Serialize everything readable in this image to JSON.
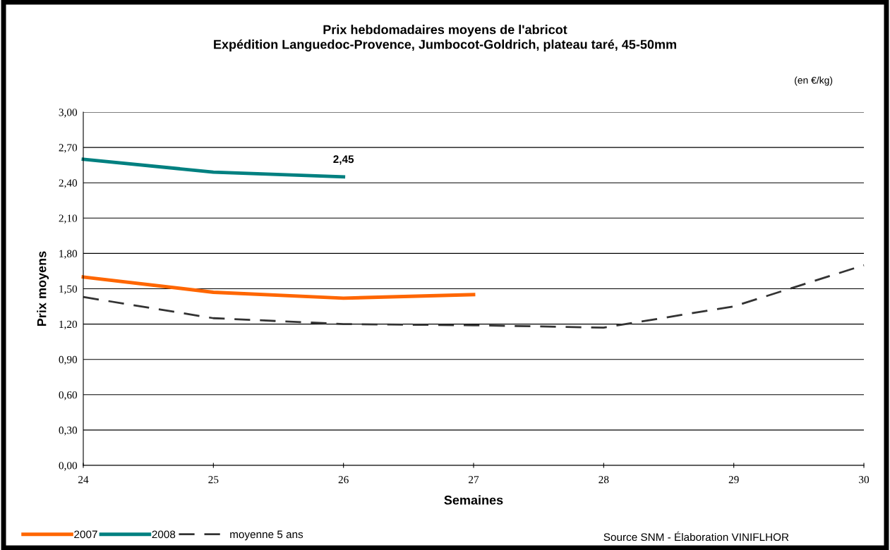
{
  "chart_data": {
    "type": "line",
    "title": "Prix hebdomadaires moyens de l'abricot\nExpédition Languedoc-Provence, Jumbocot-Goldrich, plateau taré, 45-50mm",
    "xlabel": "Semaines",
    "ylabel": "Prix moyens",
    "annotations": [
      "(en €/kg)",
      "Source SNM - Élaboration VINIFLHOR"
    ],
    "xlim": [
      24,
      30
    ],
    "xticks": [
      24,
      25,
      26,
      27,
      28,
      29,
      30
    ],
    "ylim": [
      0,
      3
    ],
    "yticks": [
      {
        "value": 0,
        "label": "0,00"
      },
      {
        "value": 0.3,
        "label": "0,30"
      },
      {
        "value": 0.6,
        "label": "0,60"
      },
      {
        "value": 0.9,
        "label": "0,90"
      },
      {
        "value": 1.2,
        "label": "1,20"
      },
      {
        "value": 1.5,
        "label": "1,50"
      },
      {
        "value": 1.8,
        "label": "1,80"
      },
      {
        "value": 2.1,
        "label": "2,10"
      },
      {
        "value": 2.4,
        "label": "2,40"
      },
      {
        "value": 2.7,
        "label": "2,70"
      },
      {
        "value": 3,
        "label": "3,00"
      }
    ],
    "grid": "y",
    "legend": "bottom left",
    "marker": "none",
    "series": [
      {
        "name": "2007",
        "color": "#ff6600",
        "line_style": "solid",
        "x": [
          24,
          25,
          26,
          27
        ],
        "values": [
          1.6,
          1.47,
          1.42,
          1.45
        ]
      },
      {
        "name": "2008",
        "color": "#008080",
        "line_style": "solid",
        "x": [
          24,
          25,
          26
        ],
        "values": [
          2.6,
          2.49,
          2.45
        ],
        "value_labels": [
          null,
          null,
          "2,45"
        ]
      },
      {
        "name": "moyenne 5 ans",
        "color": "#333333",
        "line_style": "dashed",
        "x": [
          24,
          25,
          26,
          27,
          28,
          29,
          30
        ],
        "values": [
          1.43,
          1.25,
          1.2,
          1.19,
          1.17,
          1.35,
          1.7
        ]
      }
    ]
  }
}
